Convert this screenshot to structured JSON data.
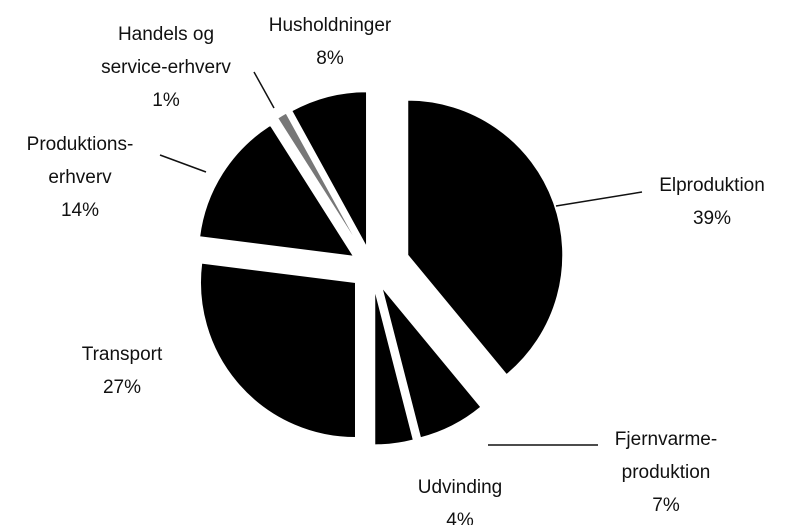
{
  "chart_data": {
    "type": "pie",
    "categories": [
      "Elproduktion",
      "Fjernvarme-\nproduktion",
      "Udvinding",
      "Transport",
      "Produktions-\nerhverv",
      "Handels og\nservice-erhverv",
      "Husholdninger"
    ],
    "values": [
      39,
      7,
      4,
      27,
      14,
      1,
      8
    ],
    "value_labels": [
      "39%",
      "7%",
      "4%",
      "27%",
      "14%",
      "1%",
      "8%"
    ],
    "colors": [
      "#000000",
      "#000000",
      "#000000",
      "#000000",
      "#000000",
      "#777777",
      "#000000"
    ]
  }
}
